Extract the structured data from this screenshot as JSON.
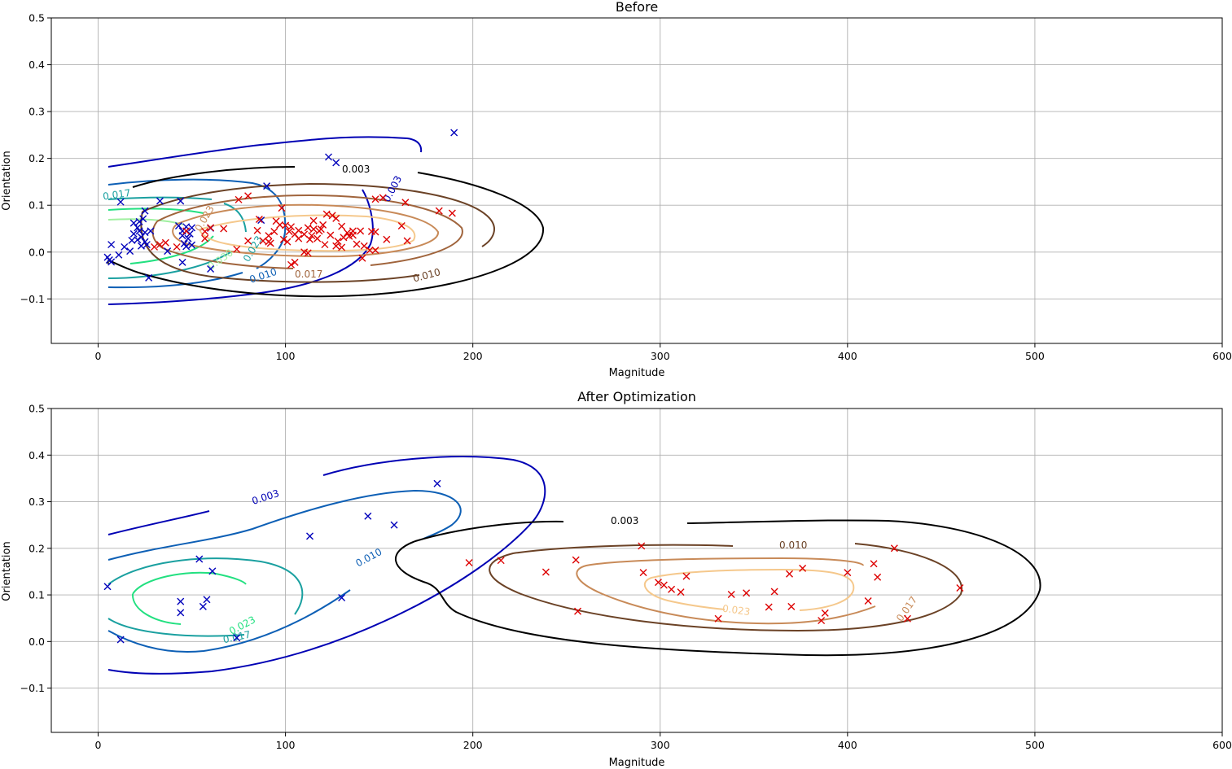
{
  "chart_data": [
    {
      "type": "scatter",
      "title": "Before",
      "xlabel": "Magnitude",
      "ylabel": "Orientation",
      "xlim": [
        -25,
        600
      ],
      "ylim": [
        -0.195,
        0.5
      ],
      "xticks": [
        0,
        100,
        200,
        300,
        400,
        500,
        600
      ],
      "yticks": [
        -0.1,
        0.0,
        0.1,
        0.2,
        0.3,
        0.4,
        0.5
      ],
      "xtick_labels": [
        "0",
        "100",
        "200",
        "300",
        "400",
        "500",
        "600"
      ],
      "ytick_labels": [
        "−0.1",
        "0.0",
        "0.1",
        "0.2",
        "0.3",
        "0.4",
        "0.5"
      ],
      "grid": true,
      "marker": "x",
      "colors": {
        "class_a": "#0000bb",
        "class_b": "#dd0000"
      },
      "series": [
        {
          "values": [
            [
              190,
              0.255
            ],
            [
              123,
              0.203
            ],
            [
              127,
              0.191
            ],
            [
              90,
              0.141
            ],
            [
              12,
              0.107
            ],
            [
              33,
              0.109
            ],
            [
              44,
              0.109
            ],
            [
              25,
              0.088
            ],
            [
              19,
              0.062
            ],
            [
              22,
              0.065
            ],
            [
              24,
              0.071
            ],
            [
              21,
              0.052
            ],
            [
              22,
              0.045
            ],
            [
              25,
              0.042
            ],
            [
              28,
              0.045
            ],
            [
              19,
              0.039
            ],
            [
              23,
              0.032
            ],
            [
              21,
              0.026
            ],
            [
              25,
              0.022
            ],
            [
              26,
              0.016
            ],
            [
              23,
              0.013
            ],
            [
              18,
              0.025
            ],
            [
              14,
              0.011
            ],
            [
              11,
              -0.006
            ],
            [
              7,
              0.016
            ],
            [
              5,
              -0.011
            ],
            [
              6,
              -0.017
            ],
            [
              7,
              -0.021
            ],
            [
              17,
              0.002
            ],
            [
              37,
              0.002
            ],
            [
              43,
              0.056
            ],
            [
              47,
              0.054
            ],
            [
              50,
              0.052
            ],
            [
              45,
              0.045
            ],
            [
              49,
              0.039
            ],
            [
              45,
              0.035
            ],
            [
              48,
              0.029
            ],
            [
              46,
              0.018
            ],
            [
              50,
              0.015
            ],
            [
              47,
              0.012
            ],
            [
              60,
              0.051
            ],
            [
              45,
              -0.022
            ],
            [
              60,
              -0.036
            ],
            [
              27,
              -0.055
            ],
            [
              87,
              0.068
            ]
          ]
        },
        {
          "values": [
            [
              189,
              0.083
            ],
            [
              182,
              0.088
            ],
            [
              164,
              0.106
            ],
            [
              152,
              0.116
            ],
            [
              148,
              0.113
            ],
            [
              162,
              0.056
            ],
            [
              165,
              0.024
            ],
            [
              154,
              0.027
            ],
            [
              148,
              0.043
            ],
            [
              146,
              0.044
            ],
            [
              140,
              0.045
            ],
            [
              136,
              0.045
            ],
            [
              133,
              0.041
            ],
            [
              134,
              0.034
            ],
            [
              131,
              0.031
            ],
            [
              128,
              0.023
            ],
            [
              127,
              0.013
            ],
            [
              130,
              0.01
            ],
            [
              138,
              0.017
            ],
            [
              142,
              0.013
            ],
            [
              145,
              0.004
            ],
            [
              148,
              0.004
            ],
            [
              141,
              -0.013
            ],
            [
              121,
              0.016
            ],
            [
              117,
              0.029
            ],
            [
              113,
              0.027
            ],
            [
              110,
              0.038
            ],
            [
              107,
              0.046
            ],
            [
              103,
              0.054
            ],
            [
              100,
              0.057
            ],
            [
              95,
              0.066
            ],
            [
              97,
              0.058
            ],
            [
              102,
              0.044
            ],
            [
              105,
              0.038
            ],
            [
              107,
              0.029
            ],
            [
              112,
              0.052
            ],
            [
              115,
              0.049
            ],
            [
              118,
              0.045
            ],
            [
              120,
              0.058
            ],
            [
              125,
              0.078
            ],
            [
              127,
              0.072
            ],
            [
              122,
              0.081
            ],
            [
              115,
              0.067
            ],
            [
              98,
              0.094
            ],
            [
              80,
              0.12
            ],
            [
              75,
              0.112
            ],
            [
              86,
              0.07
            ],
            [
              85,
              0.046
            ],
            [
              91,
              0.035
            ],
            [
              88,
              0.024
            ],
            [
              91,
              0.022
            ],
            [
              92,
              0.019
            ],
            [
              80,
              0.024
            ],
            [
              74,
              0.006
            ],
            [
              67,
              0.05
            ],
            [
              60,
              0.052
            ],
            [
              57,
              0.044
            ],
            [
              57,
              0.029
            ],
            [
              47,
              0.045
            ],
            [
              42,
              0.011
            ],
            [
              36,
              0.02
            ],
            [
              33,
              0.016
            ],
            [
              30,
              0.011
            ],
            [
              105,
              -0.022
            ],
            [
              103,
              -0.027
            ],
            [
              110,
              0.0
            ],
            [
              112,
              -0.002
            ],
            [
              99,
              0.027
            ],
            [
              101,
              0.022
            ],
            [
              94,
              0.044
            ],
            [
              114,
              0.035
            ],
            [
              119,
              0.049
            ],
            [
              124,
              0.036
            ],
            [
              130,
              0.055
            ],
            [
              136,
              0.036
            ]
          ]
        }
      ],
      "contour_levels": [
        "0.003",
        "0.003",
        "0.010",
        "0.010",
        "0.017",
        "0.017",
        "0.023",
        "0.023",
        "0.030"
      ]
    },
    {
      "type": "scatter",
      "title": "After Optimization",
      "xlabel": "Magnitude",
      "ylabel": "Orientation",
      "xlim": [
        -25,
        600
      ],
      "ylim": [
        -0.195,
        0.5
      ],
      "xticks": [
        0,
        100,
        200,
        300,
        400,
        500,
        600
      ],
      "yticks": [
        -0.1,
        0.0,
        0.1,
        0.2,
        0.3,
        0.4,
        0.5
      ],
      "xtick_labels": [
        "0",
        "100",
        "200",
        "300",
        "400",
        "500",
        "600"
      ],
      "ytick_labels": [
        "−0.1",
        "0.0",
        "0.1",
        "0.2",
        "0.3",
        "0.4",
        "0.5"
      ],
      "grid": true,
      "marker": "x",
      "colors": {
        "class_a": "#0000bb",
        "class_b": "#dd0000"
      },
      "series": [
        {
          "values": [
            [
              181,
              0.339
            ],
            [
              144,
              0.269
            ],
            [
              158,
              0.25
            ],
            [
              113,
              0.226
            ],
            [
              54,
              0.177
            ],
            [
              61,
              0.151
            ],
            [
              130,
              0.094
            ],
            [
              5,
              0.118
            ],
            [
              44,
              0.086
            ],
            [
              58,
              0.09
            ],
            [
              56,
              0.075
            ],
            [
              44,
              0.062
            ],
            [
              12,
              0.004
            ],
            [
              74,
              0.008
            ]
          ]
        },
        {
          "values": [
            [
              425,
              0.2
            ],
            [
              414,
              0.167
            ],
            [
              416,
              0.138
            ],
            [
              460,
              0.115
            ],
            [
              411,
              0.087
            ],
            [
              432,
              0.049
            ],
            [
              388,
              0.061
            ],
            [
              386,
              0.045
            ],
            [
              400,
              0.148
            ],
            [
              376,
              0.157
            ],
            [
              369,
              0.145
            ],
            [
              361,
              0.107
            ],
            [
              346,
              0.104
            ],
            [
              338,
              0.101
            ],
            [
              358,
              0.074
            ],
            [
              370,
              0.075
            ],
            [
              331,
              0.049
            ],
            [
              314,
              0.14
            ],
            [
              311,
              0.106
            ],
            [
              306,
              0.112
            ],
            [
              302,
              0.121
            ],
            [
              299,
              0.127
            ],
            [
              291,
              0.148
            ],
            [
              290,
              0.205
            ],
            [
              255,
              0.175
            ],
            [
              256,
              0.065
            ],
            [
              239,
              0.149
            ],
            [
              215,
              0.174
            ],
            [
              198,
              0.169
            ]
          ]
        }
      ],
      "contour_levels": [
        "0.003",
        "0.003",
        "0.010",
        "0.010",
        "0.017",
        "0.017",
        "0.023",
        "0.023"
      ]
    }
  ]
}
